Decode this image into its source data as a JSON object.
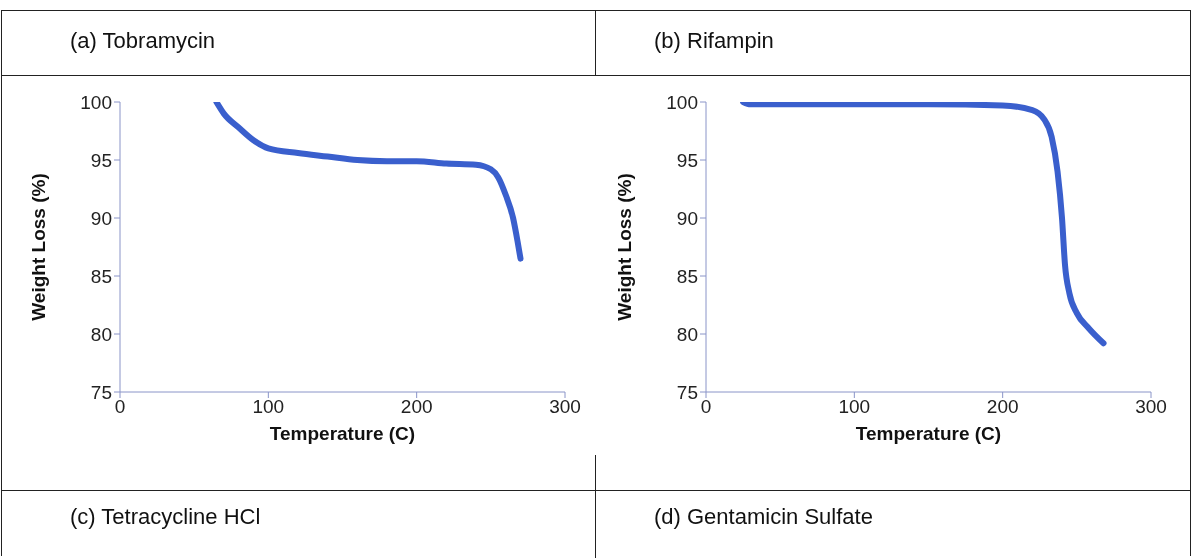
{
  "chart_data": [
    {
      "type": "line",
      "title": "(a) Tobramycin",
      "xlabel": "Temperature (C)",
      "ylabel": "Weight Loss (%)",
      "xlim": [
        0,
        300
      ],
      "xticks": [
        0,
        100,
        200,
        300
      ],
      "ylim": [
        75,
        100
      ],
      "yticks": [
        75,
        80,
        85,
        90,
        95,
        100
      ],
      "grid": false,
      "legend": false,
      "marker": "none",
      "line_style": "solid",
      "series": [
        {
          "color": "#3a5fcd",
          "x": [
            65,
            70,
            80,
            90,
            100,
            120,
            140,
            160,
            180,
            200,
            220,
            240,
            250,
            255,
            260,
            265,
            268,
            270
          ],
          "values": [
            100,
            99,
            97.8,
            96.7,
            96,
            95.6,
            95.3,
            95,
            94.9,
            94.9,
            94.7,
            94.6,
            94.2,
            93.5,
            92,
            90,
            88,
            86.5
          ]
        }
      ]
    },
    {
      "type": "line",
      "title": "(b) Rifampin",
      "xlabel": "Temperature (C)",
      "ylabel": "Weight Loss (%)",
      "xlim": [
        0,
        300
      ],
      "xticks": [
        0,
        100,
        200,
        300
      ],
      "ylim": [
        75,
        100
      ],
      "yticks": [
        75,
        80,
        85,
        90,
        95,
        100
      ],
      "grid": false,
      "legend": false,
      "marker": "none",
      "line_style": "solid",
      "series": [
        {
          "color": "#3a5fcd",
          "x": [
            25,
            30,
            100,
            150,
            200,
            220,
            228,
            233,
            237,
            240,
            242,
            245,
            250,
            258,
            268
          ],
          "values": [
            100,
            99.8,
            99.8,
            99.8,
            99.7,
            99.3,
            98.5,
            97,
            94,
            90,
            86,
            83.5,
            81.8,
            80.5,
            79.2
          ]
        }
      ]
    },
    {
      "type": "other",
      "title": "(c) Tetracycline HCl"
    },
    {
      "type": "other",
      "title": "(d) Gentamicin Sulfate"
    }
  ]
}
